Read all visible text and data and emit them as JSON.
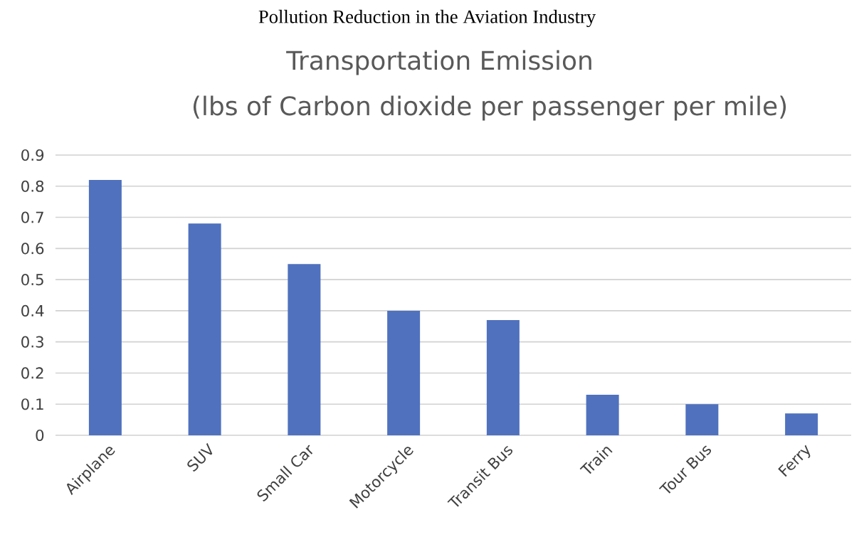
{
  "chart_data": {
    "type": "bar",
    "annotations": [
      "Pollution Reduction in the Aviation Industry"
    ],
    "title": "Transportation Emission",
    "subtitle": "(lbs of Carbon dioxide per passenger per mile)",
    "categories": [
      "Airplane",
      "SUV",
      "Small Car",
      "Motorcycle",
      "Transit Bus",
      "Train",
      "Tour Bus",
      "Ferry"
    ],
    "values": [
      0.82,
      0.68,
      0.55,
      0.4,
      0.37,
      0.13,
      0.1,
      0.07
    ],
    "color": "#4f71be",
    "ylim": [
      0,
      0.9
    ],
    "yticks": [
      0,
      0.1,
      0.2,
      0.3,
      0.4,
      0.5,
      0.6,
      0.7,
      0.8,
      0.9
    ],
    "grid": "y"
  }
}
